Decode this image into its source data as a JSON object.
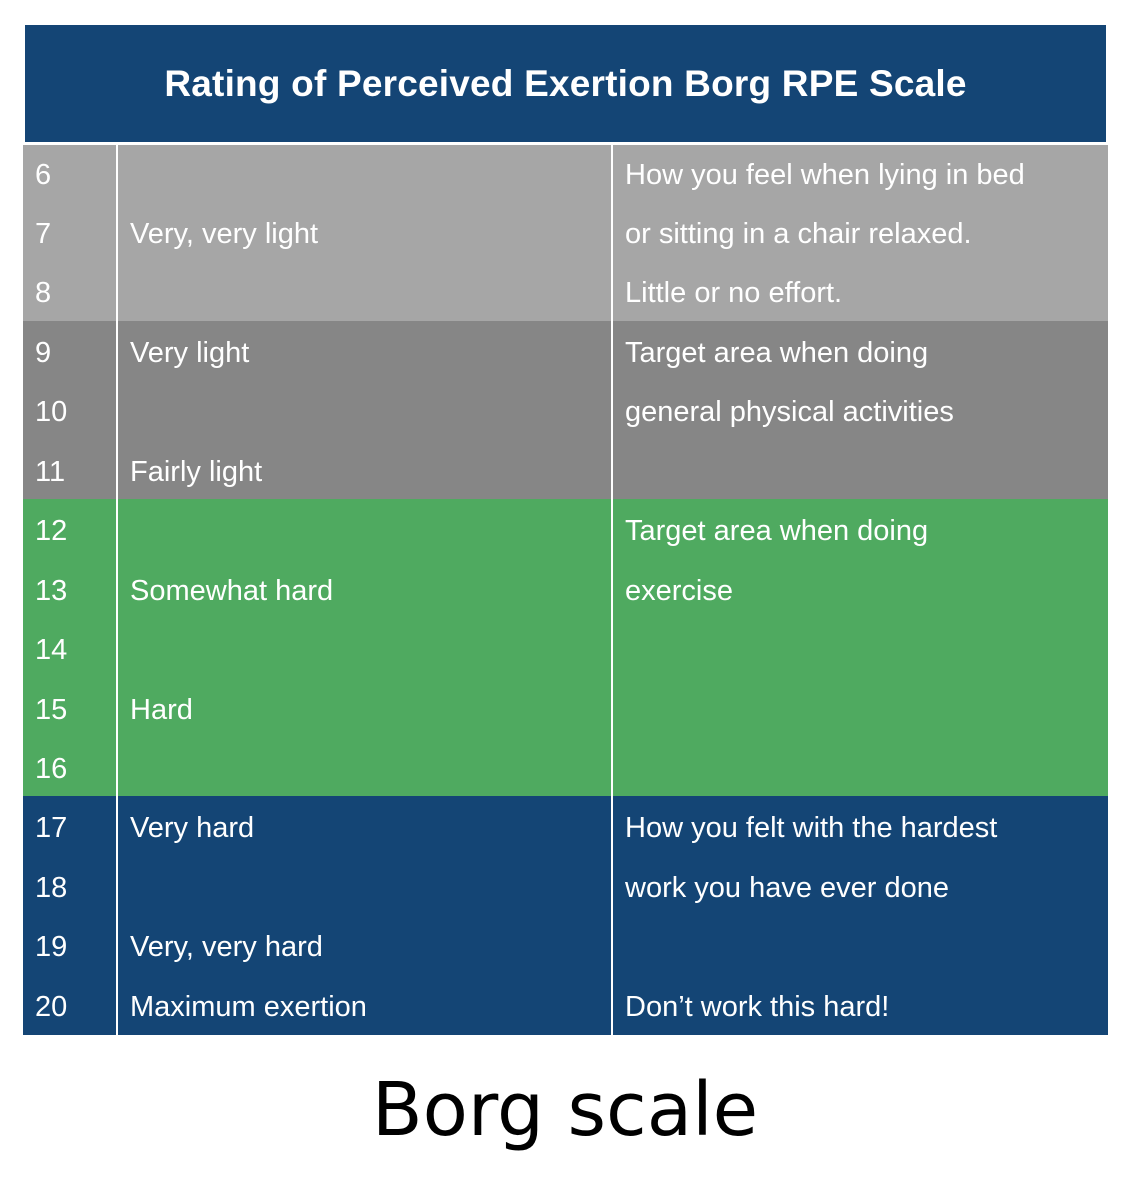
{
  "table": {
    "title": "Rating of Perceived Exertion Borg RPE Scale",
    "colors": {
      "header": "#144575",
      "band_very_light": "#a6a6a6",
      "band_light": "#868686",
      "band_exercise": "#4faa60",
      "band_hard": "#144575"
    },
    "ratings": [
      "6",
      "7",
      "8",
      "9",
      "10",
      "11",
      "12",
      "13",
      "14",
      "15",
      "16",
      "17",
      "18",
      "19",
      "20"
    ],
    "descriptors": {
      "r7": "Very, very light",
      "r9": "Very light",
      "r11": "Fairly light",
      "r13": "Somewhat hard",
      "r15": "Hard",
      "r17": "Very hard",
      "r19": "Very, very hard",
      "r20": "Maximum exertion"
    },
    "notes": {
      "rest_line1": "How you feel when lying in bed",
      "rest_line2": "or sitting in a chair relaxed.",
      "rest_line3": "Little or no effort.",
      "general_line1": "Target area when doing",
      "general_line2": "general physical activities",
      "exercise_line1": "Target area when doing",
      "exercise_line2": "exercise",
      "hardest_line1": "How you felt with the hardest",
      "hardest_line2": "work you have ever done",
      "warning": "Don’t work this hard!"
    }
  },
  "caption": "Borg scale"
}
